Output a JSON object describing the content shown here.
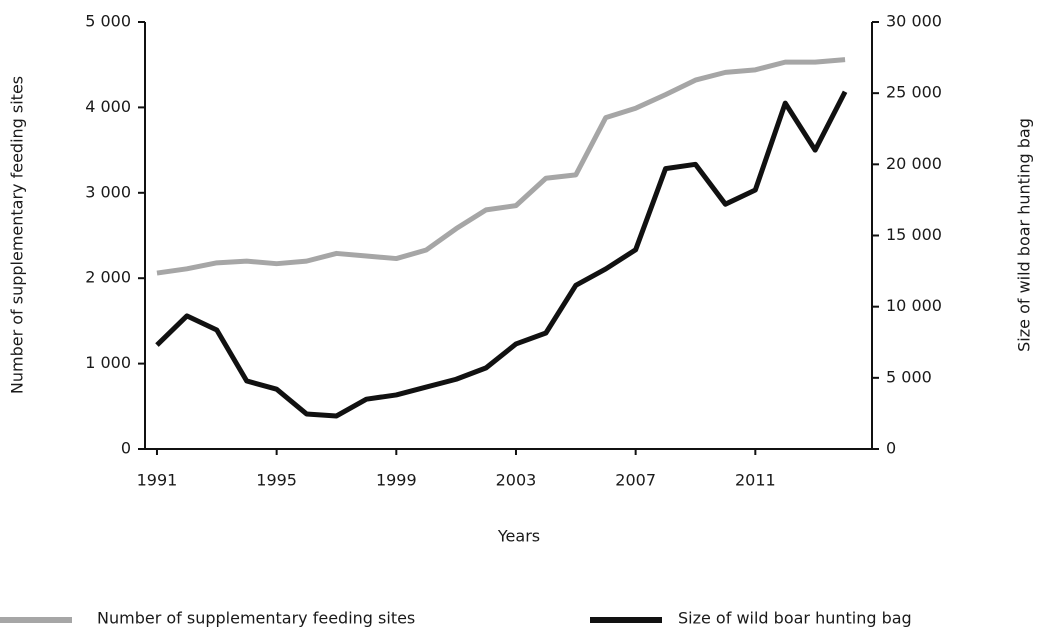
{
  "chart_data": {
    "type": "line",
    "x_label": "Years",
    "y_label": "Number of supplementary feeding sites",
    "y2_label": "Size of wild boar hunting bag",
    "x": [
      1991,
      1992,
      1993,
      1994,
      1995,
      1996,
      1997,
      1998,
      1999,
      2000,
      2001,
      2002,
      2003,
      2004,
      2005,
      2006,
      2007,
      2008,
      2009,
      2010,
      2011,
      2012,
      2013,
      2014
    ],
    "series": [
      {
        "name": "Number of supplementary feeding sites",
        "color": "#a6a6a6",
        "values": [
          2060,
          2110,
          2180,
          2200,
          2170,
          2200,
          2290,
          2260,
          2230,
          2330,
          2580,
          2800,
          2850,
          3170,
          3210,
          3880,
          3990,
          4150,
          4320,
          4410,
          4440,
          4530,
          4530,
          4560
        ]
      },
      {
        "name": "Size of wild boar hunting bag",
        "color": "#111111",
        "axis": "y2",
        "values": [
          7300,
          9350,
          8360,
          4780,
          4200,
          2460,
          2320,
          3500,
          3800,
          4350,
          4900,
          5700,
          7380,
          8150,
          11500,
          12650,
          14000,
          19700,
          20000,
          17200,
          18200,
          24300,
          21000,
          25100
        ]
      }
    ],
    "xlim": [
      1990.6,
      2014.9
    ],
    "xticks": [
      1991,
      1995,
      1999,
      2003,
      2007,
      2011
    ],
    "ylim": [
      0,
      5000
    ],
    "yticks": [
      0,
      {
        "value": 1000,
        "label": "1 000"
      },
      {
        "value": 2000,
        "label": "2 000"
      },
      {
        "value": 3000,
        "label": "3 000"
      },
      {
        "value": 4000,
        "label": "4 000"
      },
      {
        "value": 5000,
        "label": "5 000"
      }
    ],
    "y2lim": [
      0,
      30000
    ],
    "y2ticks": [
      0,
      {
        "value": 5000,
        "label": "5 000"
      },
      {
        "value": 10000,
        "label": "10 000"
      },
      {
        "value": 15000,
        "label": "15 000"
      },
      {
        "value": 20000,
        "label": "20 000"
      },
      {
        "value": 25000,
        "label": "25 000"
      },
      {
        "value": 30000,
        "label": "30 000"
      }
    ],
    "legend": "bottom"
  }
}
